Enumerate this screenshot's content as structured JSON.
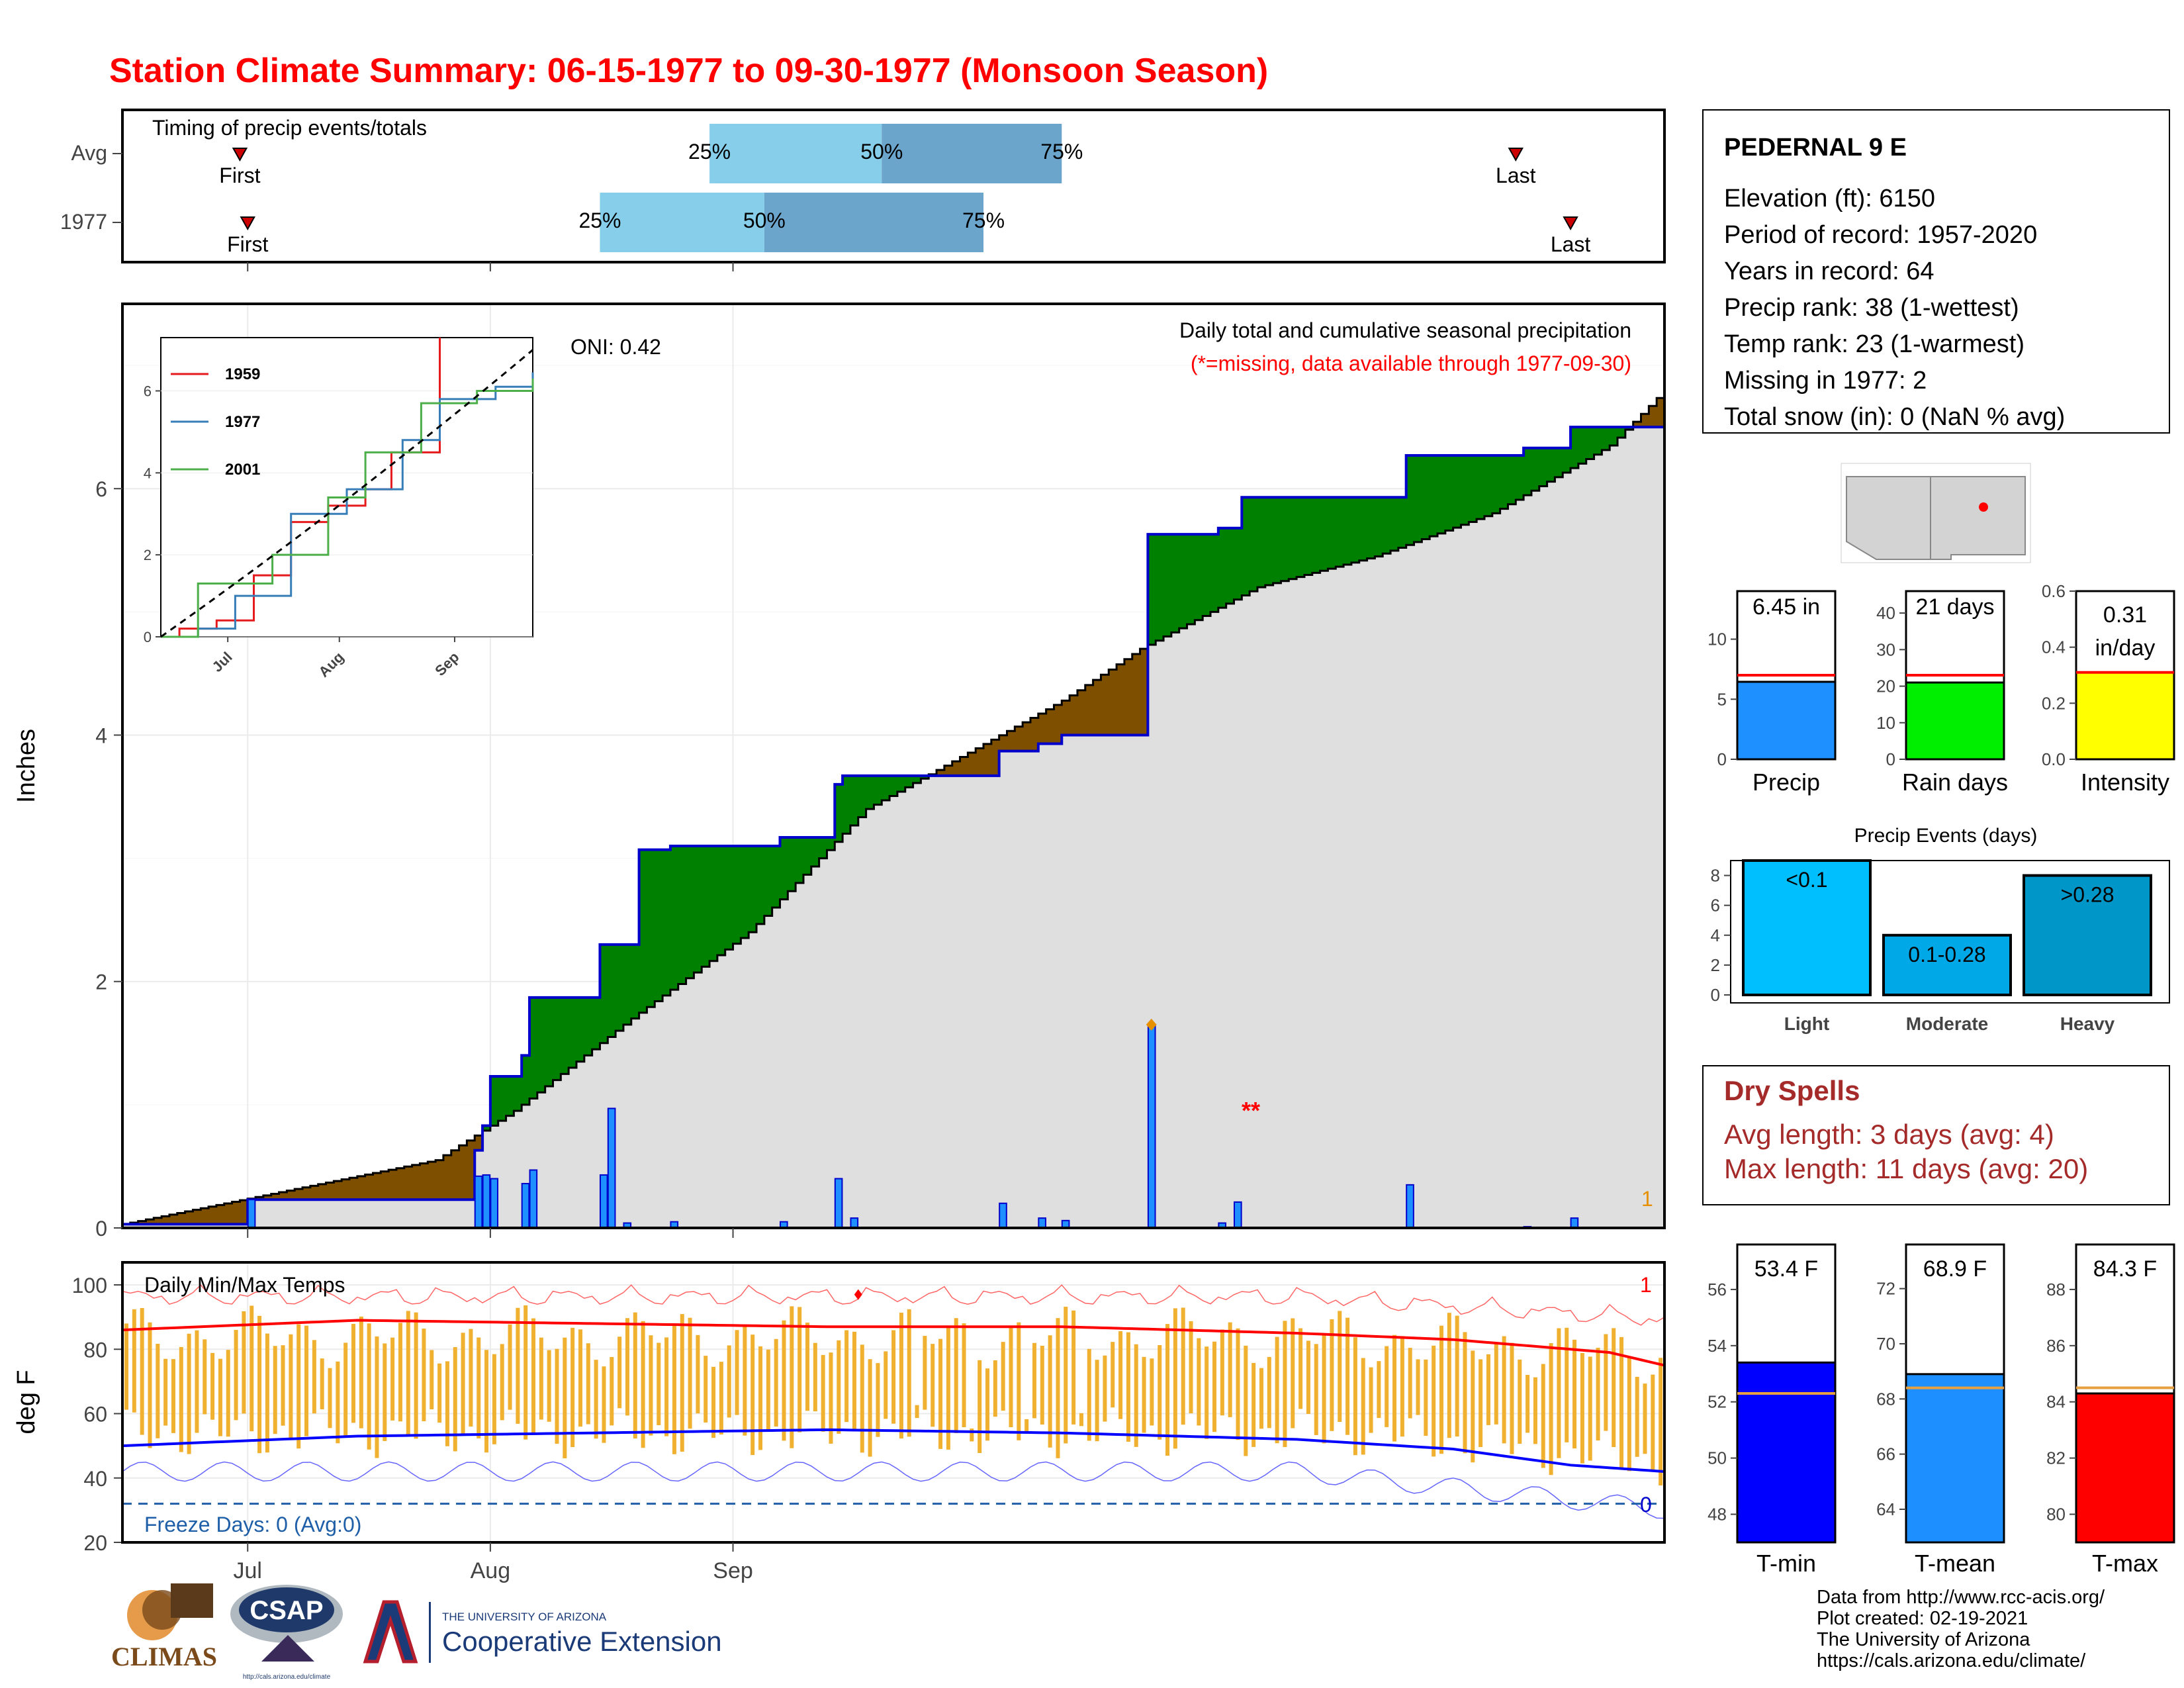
{
  "title": "Station Climate Summary: 06-15-1977 to 09-30-1977 (Monsoon Season)",
  "timing": {
    "label": "Timing of precip events/totals",
    "rows": [
      {
        "name": "Avg",
        "first_day": 15,
        "q25_day": 75,
        "q50_day": 97,
        "q75_day": 120,
        "last_day": 178
      },
      {
        "name": "1977",
        "first_day": 16,
        "q25_day": 61,
        "q50_day": 82,
        "q75_day": 110,
        "last_day": 185
      }
    ],
    "first_label": "First",
    "last_label": "Last",
    "q25_label": "25%",
    "q50_label": "50%",
    "q75_label": "75%"
  },
  "main": {
    "ylabel": "Inches",
    "header_text": "Daily total and cumulative seasonal precipitation",
    "missing_note": "(*=missing, data available through 1977-09-30)",
    "missing_marker": "**",
    "oni_text": "ONI: 0.42",
    "max_label": "1",
    "ylim": [
      0,
      7.5
    ],
    "yticks": [
      0,
      2,
      4,
      6
    ],
    "xtick_labels": [
      "Jul",
      "Aug",
      "Sep"
    ]
  },
  "inset": {
    "yticks": [
      0,
      2,
      4,
      6
    ],
    "xtick_labels": [
      "Jul",
      "Aug",
      "Sep"
    ],
    "series_names": [
      "1959",
      "1977",
      "2001"
    ]
  },
  "station": {
    "name": "PEDERNAL 9 E",
    "lines": [
      "Elevation (ft): 6150",
      "Period of record: 1957-2020",
      "Years in record: 64",
      "Precip rank: 38 (1-wettest)",
      "Temp rank: 23 (1-warmest)",
      "Missing in 1977: 2",
      "Total snow (in): 0 (NaN % avg)"
    ]
  },
  "summary_bars": [
    {
      "name": "Precip",
      "label": "6.45 in",
      "value": 6.45,
      "avg": 7.0,
      "ymax": 14,
      "yticks": [
        0,
        5,
        10
      ],
      "color": "#1e90ff"
    },
    {
      "name": "Rain days",
      "label": "21 days",
      "value": 21,
      "avg": 23,
      "ymax": 46,
      "yticks": [
        0,
        10,
        20,
        30,
        40
      ],
      "color": "#00ee00"
    },
    {
      "name": "Intensity",
      "label": "0.31 in/day",
      "label_line1": "0.31",
      "label_line2": "in/day",
      "value": 0.31,
      "avg": 0.31,
      "ymax": 0.6,
      "yticks": [
        "0.0",
        "0.2",
        "0.4",
        "0.6"
      ],
      "color": "#ffff00"
    }
  ],
  "events": {
    "title": "Precip Events (days)",
    "bars": [
      {
        "name": "Light",
        "label": "<0.1",
        "value": 9,
        "color": "#00bfff"
      },
      {
        "name": "Moderate",
        "label": "0.1-0.28",
        "value": 4,
        "color": "#00a8e8"
      },
      {
        "name": "Heavy",
        "label": ">0.28",
        "value": 8,
        "color": "#0096c8"
      }
    ],
    "yticks": [
      0,
      2,
      4,
      6,
      8
    ]
  },
  "dry_spells": {
    "title": "Dry Spells",
    "avg_line": "Avg length: 3 days (avg: 4)",
    "max_line": "Max length: 11 days (avg: 20)"
  },
  "temps": {
    "title": "Daily Min/Max Temps",
    "ylabel": "deg F",
    "freeze_text": "Freeze Days: 0 (Avg:0)",
    "freeze_count": "0",
    "max_count": "1",
    "yticks": [
      20,
      40,
      60,
      80,
      100
    ],
    "ylim": [
      20,
      107
    ]
  },
  "temp_bars": [
    {
      "name": "T-min",
      "label": "53.4 F",
      "value": 53.4,
      "avg": 52.3,
      "ylim": [
        47,
        57.6
      ],
      "yticks": [
        48,
        50,
        52,
        54,
        56
      ],
      "color": "#0000ff"
    },
    {
      "name": "T-mean",
      "label": "68.9 F",
      "value": 68.9,
      "avg": 68.4,
      "ylim": [
        62.8,
        73.6
      ],
      "yticks": [
        64,
        66,
        68,
        70,
        72
      ],
      "color": "#1e8fff"
    },
    {
      "name": "T-max",
      "label": "84.3 F",
      "value": 84.3,
      "avg": 84.5,
      "ylim": [
        79,
        89.6
      ],
      "yticks": [
        80,
        82,
        84,
        86,
        88
      ],
      "color": "#ff0000"
    }
  ],
  "credits": [
    "Data from http://www.rcc-acis.org/",
    "Plot created: 02-19-2021",
    "The University of Arizona",
    "https://cals.arizona.edu/climate/"
  ],
  "logos": {
    "climas": "CLIMAS",
    "csap": "CSAP",
    "csap_url": "http://cals.arizona.edu/climate",
    "ua_small": "THE UNIVERSITY OF ARIZONA",
    "ua_big": "Cooperative Extension"
  },
  "colors": {
    "title": "#ff0000",
    "wet": "#008000",
    "dry": "#7f4f00",
    "fill": "#dfdfdf",
    "cum_line": "#0000cc",
    "bar": "#1e90ff",
    "q_light": "#87ceeb",
    "q_dark": "#6ba5cc",
    "tbar": "#f0b030",
    "dry_spell": "#a52a2a"
  },
  "chart_data": [
    {
      "type": "area",
      "title": "Daily total and cumulative seasonal precipitation",
      "ylabel": "Inches",
      "ylim": [
        0,
        7.5
      ],
      "x_start": "1977-06-15",
      "cumulative_1977": [
        [
          0,
          0.03
        ],
        [
          16,
          0.23
        ],
        [
          45,
          0.63
        ],
        [
          46,
          0.83
        ],
        [
          47,
          1.23
        ],
        [
          51,
          1.4
        ],
        [
          52,
          1.87
        ],
        [
          61,
          2.3
        ],
        [
          66,
          3.07
        ],
        [
          70,
          3.1
        ],
        [
          84,
          3.17
        ],
        [
          91,
          3.6
        ],
        [
          92,
          3.67
        ],
        [
          112,
          3.87
        ],
        [
          117,
          3.93
        ],
        [
          120,
          4.0
        ],
        [
          127,
          4.0
        ],
        [
          131,
          5.63
        ],
        [
          140,
          5.68
        ],
        [
          143,
          5.93
        ],
        [
          164,
          6.27
        ],
        [
          179,
          6.33
        ],
        [
          185,
          6.5
        ],
        [
          197,
          6.5
        ]
      ],
      "cumulative_avg": [
        [
          0,
          0.03
        ],
        [
          40,
          0.55
        ],
        [
          50,
          0.95
        ],
        [
          65,
          1.7
        ],
        [
          80,
          2.4
        ],
        [
          95,
          3.4
        ],
        [
          120,
          4.28
        ],
        [
          130,
          4.7
        ],
        [
          145,
          5.2
        ],
        [
          160,
          5.45
        ],
        [
          175,
          5.8
        ],
        [
          190,
          6.35
        ],
        [
          197,
          6.8
        ]
      ],
      "daily_bars": [
        [
          16,
          0.23
        ],
        [
          45,
          0.42
        ],
        [
          46,
          0.43
        ],
        [
          47,
          0.4
        ],
        [
          51,
          0.36
        ],
        [
          52,
          0.47
        ],
        [
          61,
          0.43
        ],
        [
          62,
          0.97
        ],
        [
          64,
          0.04
        ],
        [
          70,
          0.05
        ],
        [
          84,
          0.05
        ],
        [
          91,
          0.4
        ],
        [
          93,
          0.08
        ],
        [
          112,
          0.2
        ],
        [
          117,
          0.08
        ],
        [
          120,
          0.06
        ],
        [
          131,
          1.65
        ],
        [
          140,
          0.04
        ],
        [
          142,
          0.21
        ],
        [
          164,
          0.35
        ],
        [
          179,
          0.01
        ],
        [
          185,
          0.08
        ]
      ],
      "missing_days": [
        143,
        144
      ]
    },
    {
      "type": "line",
      "title": "Cumulative precipitation comparison",
      "series": [
        {
          "name": "1959",
          "values": [
            [
              0,
              0
            ],
            [
              5,
              0.2
            ],
            [
              15,
              0.4
            ],
            [
              25,
              1.5
            ],
            [
              35,
              2.8
            ],
            [
              45,
              3.2
            ],
            [
              55,
              3.6
            ],
            [
              62,
              4.5
            ],
            [
              75,
              7.5
            ]
          ]
        },
        {
          "name": "1977",
          "values": [
            [
              0,
              0
            ],
            [
              10,
              0.2
            ],
            [
              20,
              1.0
            ],
            [
              35,
              3.0
            ],
            [
              50,
              3.6
            ],
            [
              65,
              4.8
            ],
            [
              75,
              5.8
            ],
            [
              90,
              6.1
            ],
            [
              100,
              6.45
            ]
          ]
        },
        {
          "name": "2001",
          "values": [
            [
              0,
              0
            ],
            [
              10,
              1.3
            ],
            [
              20,
              1.3
            ],
            [
              30,
              2.0
            ],
            [
              45,
              3.4
            ],
            [
              55,
              4.5
            ],
            [
              70,
              5.7
            ],
            [
              85,
              6.0
            ],
            [
              100,
              6.3
            ]
          ]
        }
      ]
    },
    {
      "type": "bar",
      "title": "Daily Min/Max Temps",
      "ylabel": "deg F",
      "ylim": [
        20,
        107
      ],
      "tmax_avg": [
        [
          0,
          86
        ],
        [
          30,
          89
        ],
        [
          60,
          88
        ],
        [
          90,
          87
        ],
        [
          120,
          87
        ],
        [
          150,
          85
        ],
        [
          170,
          83
        ],
        [
          190,
          79
        ],
        [
          197,
          75
        ]
      ],
      "tmin_avg": [
        [
          0,
          50
        ],
        [
          30,
          53
        ],
        [
          60,
          54
        ],
        [
          90,
          55
        ],
        [
          120,
          54
        ],
        [
          150,
          52
        ],
        [
          170,
          49
        ],
        [
          185,
          44
        ],
        [
          197,
          42
        ]
      ],
      "record_max": 97,
      "freeze_threshold": 32
    }
  ]
}
